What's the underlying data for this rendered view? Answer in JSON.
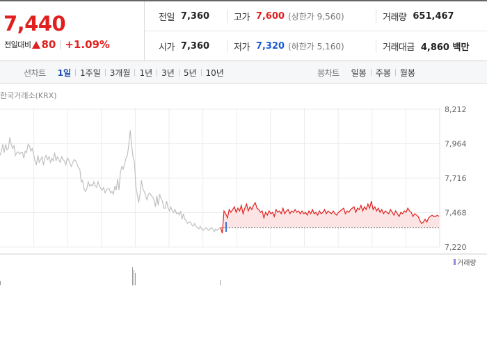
{
  "price": {
    "current": "7,440",
    "change_label": "전일대비",
    "change_amount": "80",
    "change_percent": "+1.09%"
  },
  "stats": {
    "prev_close": {
      "label": "전일",
      "value": "7,360"
    },
    "high": {
      "label": "고가",
      "value": "7,600",
      "sub": "(상한가 9,560)"
    },
    "volume": {
      "label": "거래량",
      "value": "651,467"
    },
    "open": {
      "label": "시가",
      "value": "7,360"
    },
    "low": {
      "label": "저가",
      "value": "7,320",
      "sub": "(하한가 5,160)"
    },
    "trade_value": {
      "label": "거래대금",
      "value": "4,860 백만"
    }
  },
  "tabs": {
    "line_chart_label": "선차트",
    "line_chart_periods": [
      {
        "label": "1일",
        "active": true
      },
      {
        "label": "1주일",
        "active": false
      },
      {
        "label": "3개월",
        "active": false
      },
      {
        "label": "1년",
        "active": false
      },
      {
        "label": "3년",
        "active": false
      },
      {
        "label": "5년",
        "active": false
      },
      {
        "label": "10년",
        "active": false
      }
    ],
    "candle_chart_label": "봉차트",
    "candle_chart_periods": [
      {
        "label": "일봉",
        "active": false
      },
      {
        "label": "주봉",
        "active": false
      },
      {
        "label": "월봉",
        "active": false
      }
    ]
  },
  "chart_data": {
    "type": "line",
    "source_label": "한국거래소(KRX)",
    "volume_label": "거래량",
    "y_ticks": [
      "8,212",
      "7,964",
      "7,716",
      "7,468",
      "7,220"
    ],
    "ylim": [
      7220,
      8212
    ],
    "reference_price": 7360,
    "colors": {
      "previous": "#c0c0c0",
      "today": "#e0201f",
      "today_fill": "#fde4e4",
      "open_marker": "#3b6fd6"
    },
    "series": [
      {
        "values": [
          7880,
          7910,
          7960,
          7900,
          7960,
          7920,
          7930,
          8010,
          7960,
          7930,
          7950,
          7880,
          7900,
          7905,
          7890,
          7900,
          7900,
          7860,
          7910,
          7900,
          7960,
          7950,
          7910,
          7930,
          7890,
          7840,
          7810,
          7880,
          7830,
          7850,
          7870,
          7810,
          7860,
          7880,
          7850,
          7870,
          7830,
          7860,
          7840,
          7900,
          7840,
          7870,
          7850,
          7830,
          7870,
          7850,
          7840,
          7810,
          7860,
          7850,
          7820,
          7800,
          7830,
          7850,
          7840,
          7820,
          7790,
          7780,
          7690,
          7700,
          7640,
          7620,
          7640,
          7690,
          7660,
          7670,
          7660,
          7690,
          7660,
          7650,
          7690,
          7660,
          7640,
          7630,
          7650,
          7610,
          7630,
          7640,
          7640,
          7610,
          7620,
          7600,
          7660,
          7630,
          7710,
          7630,
          7760,
          7800,
          7780,
          7820,
          7860,
          7880,
          7960,
          8060,
          7950,
          7870,
          7830,
          7660,
          7600,
          7540,
          7600,
          7700,
          7640,
          7620,
          7590,
          7560,
          7600,
          7610,
          7590,
          7580,
          7560,
          7510,
          7590,
          7520,
          7600,
          7570,
          7550,
          7500,
          7500,
          7550,
          7500,
          7480,
          7510,
          7480,
          7470,
          7490,
          7460,
          7470,
          7450,
          7480,
          7420,
          7460,
          7420,
          7410,
          7390,
          7400,
          7400,
          7380,
          7370,
          7390,
          7370,
          7360,
          7350,
          7370,
          7350,
          7340,
          7350,
          7360,
          7350,
          7340,
          7350,
          7360,
          7350,
          7330,
          7350,
          7340,
          7350,
          7360
        ]
      },
      {
        "values": [
          7360,
          7320,
          7480,
          7460,
          7430,
          7490,
          7470,
          7490,
          7510,
          7470,
          7500,
          7480,
          7520,
          7460,
          7500,
          7530,
          7480,
          7510,
          7490,
          7520,
          7540,
          7500,
          7490,
          7470,
          7480,
          7430,
          7470,
          7450,
          7480,
          7460,
          7470,
          7440,
          7490,
          7470,
          7480,
          7460,
          7500,
          7460,
          7480,
          7490,
          7460,
          7480,
          7470,
          7490,
          7470,
          7480,
          7460,
          7480,
          7460,
          7470,
          7450,
          7480,
          7460,
          7490,
          7460,
          7470,
          7450,
          7480,
          7460,
          7470,
          7490,
          7460,
          7480,
          7470,
          7460,
          7480,
          7460,
          7450,
          7470,
          7480,
          7490,
          7500,
          7460,
          7480,
          7470,
          7490,
          7500,
          7510,
          7470,
          7500,
          7490,
          7520,
          7480,
          7510,
          7490,
          7530,
          7500,
          7550,
          7490,
          7510,
          7480,
          7500,
          7470,
          7490,
          7460,
          7480,
          7470,
          7460,
          7490,
          7470,
          7450,
          7480,
          7460,
          7440,
          7470,
          7460,
          7480,
          7470,
          7500,
          7480,
          7470,
          7440,
          7460,
          7450,
          7440,
          7410,
          7390,
          7400,
          7420,
          7400,
          7430,
          7440,
          7450,
          7440,
          7440,
          7450,
          7440
        ]
      }
    ]
  }
}
